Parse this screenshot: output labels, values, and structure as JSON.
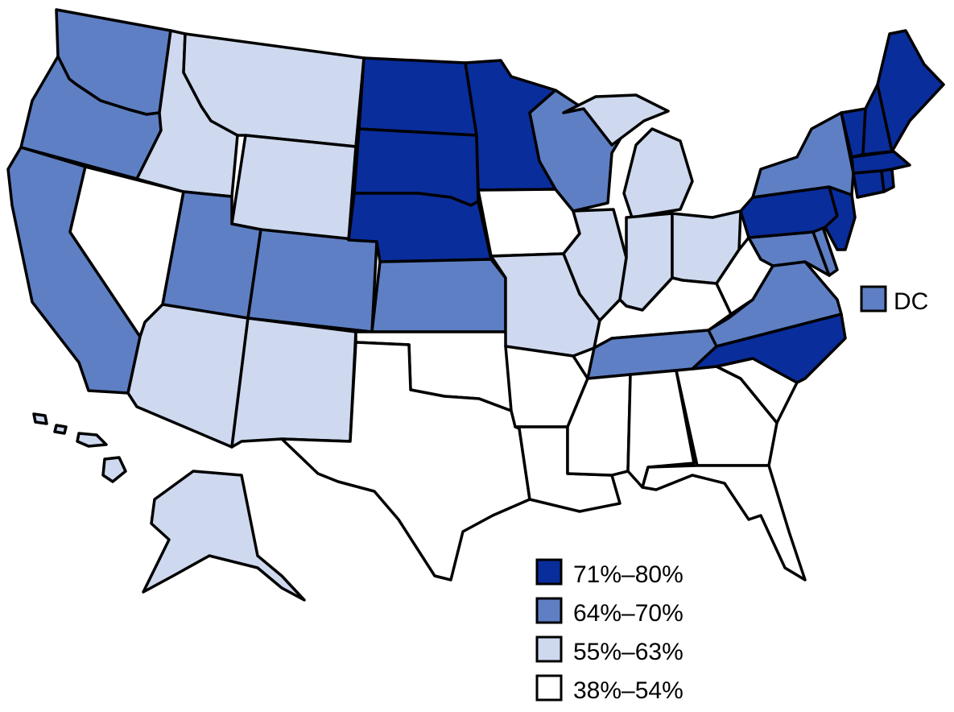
{
  "colors": {
    "background": "#ffffff",
    "outline": "#000000",
    "71-80": "#0a2d9c",
    "64-70": "#5f7fc4",
    "55-63": "#ced9ef",
    "38-54": "#ffffff"
  },
  "legend": [
    {
      "bin": "71-80",
      "label": "71%–80%"
    },
    {
      "bin": "64-70",
      "label": "64%–70%"
    },
    {
      "bin": "55-63",
      "label": "55%–63%"
    },
    {
      "bin": "38-54",
      "label": "38%–54%"
    }
  ],
  "dc": {
    "label": "DC",
    "bin": "64-70"
  },
  "states": [
    {
      "code": "WA",
      "bin": "64-70"
    },
    {
      "code": "OR",
      "bin": "64-70"
    },
    {
      "code": "CA",
      "bin": "64-70"
    },
    {
      "code": "NV",
      "bin": "38-54"
    },
    {
      "code": "ID",
      "bin": "55-63"
    },
    {
      "code": "MT",
      "bin": "55-63"
    },
    {
      "code": "WY",
      "bin": "55-63"
    },
    {
      "code": "UT",
      "bin": "64-70"
    },
    {
      "code": "AZ",
      "bin": "55-63"
    },
    {
      "code": "CO",
      "bin": "64-70"
    },
    {
      "code": "NM",
      "bin": "55-63"
    },
    {
      "code": "ND",
      "bin": "71-80"
    },
    {
      "code": "SD",
      "bin": "71-80"
    },
    {
      "code": "NE",
      "bin": "71-80"
    },
    {
      "code": "KS",
      "bin": "64-70"
    },
    {
      "code": "OK",
      "bin": "38-54"
    },
    {
      "code": "TX",
      "bin": "38-54"
    },
    {
      "code": "MN",
      "bin": "71-80"
    },
    {
      "code": "IA",
      "bin": "38-54"
    },
    {
      "code": "MO",
      "bin": "55-63"
    },
    {
      "code": "AR",
      "bin": "38-54"
    },
    {
      "code": "LA",
      "bin": "38-54"
    },
    {
      "code": "WI",
      "bin": "64-70"
    },
    {
      "code": "IL",
      "bin": "55-63"
    },
    {
      "code": "MI",
      "bin": "55-63"
    },
    {
      "code": "IN",
      "bin": "55-63"
    },
    {
      "code": "OH",
      "bin": "55-63"
    },
    {
      "code": "KY",
      "bin": "38-54"
    },
    {
      "code": "TN",
      "bin": "64-70"
    },
    {
      "code": "MS",
      "bin": "38-54"
    },
    {
      "code": "AL",
      "bin": "38-54"
    },
    {
      "code": "GA",
      "bin": "38-54"
    },
    {
      "code": "FL",
      "bin": "38-54"
    },
    {
      "code": "SC",
      "bin": "38-54"
    },
    {
      "code": "NC",
      "bin": "71-80"
    },
    {
      "code": "VA",
      "bin": "64-70"
    },
    {
      "code": "WV",
      "bin": "38-54"
    },
    {
      "code": "MD",
      "bin": "64-70"
    },
    {
      "code": "DE",
      "bin": "64-70"
    },
    {
      "code": "NJ",
      "bin": "71-80"
    },
    {
      "code": "PA",
      "bin": "71-80"
    },
    {
      "code": "NY",
      "bin": "64-70"
    },
    {
      "code": "CT",
      "bin": "71-80"
    },
    {
      "code": "RI",
      "bin": "71-80"
    },
    {
      "code": "MA",
      "bin": "71-80"
    },
    {
      "code": "VT",
      "bin": "71-80"
    },
    {
      "code": "NH",
      "bin": "71-80"
    },
    {
      "code": "ME",
      "bin": "71-80"
    },
    {
      "code": "AK",
      "bin": "55-63"
    },
    {
      "code": "HI",
      "bin": "55-63"
    }
  ]
}
